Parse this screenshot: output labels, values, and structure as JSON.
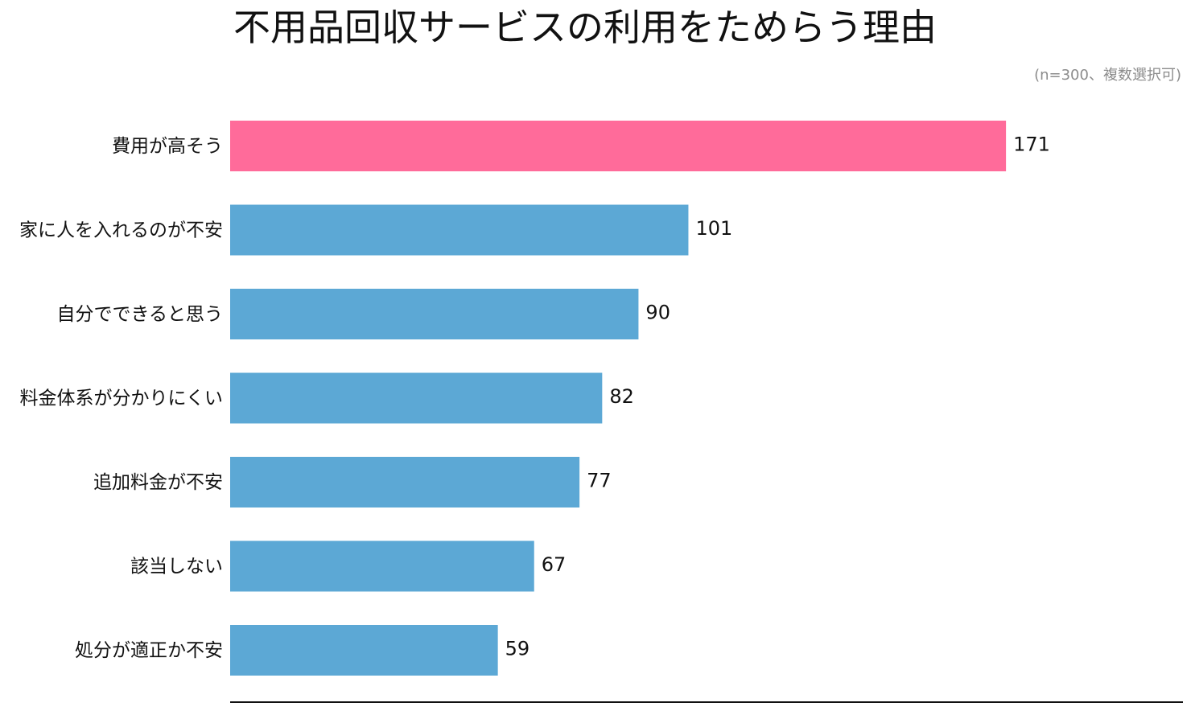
{
  "chart_data": {
    "type": "bar",
    "orientation": "horizontal",
    "title": "不用品回収サービスの利用をためらう理由",
    "note": "(n=300、複数選択可)",
    "categories": [
      "費用が高そう",
      "家に人を入れるのが不安",
      "自分でできると思う",
      "料金体系が分かりにくい",
      "追加料金が不安",
      "該当しない",
      "処分が適正か不安"
    ],
    "values": [
      171,
      101,
      90,
      82,
      77,
      67,
      59
    ],
    "highlight_index": 0,
    "colors": {
      "highlight": "#ff6b9a",
      "bar": "#5ca8d5",
      "axis": "#111111"
    },
    "xlim": [
      0,
      210
    ],
    "grid": false,
    "legend": "none"
  }
}
